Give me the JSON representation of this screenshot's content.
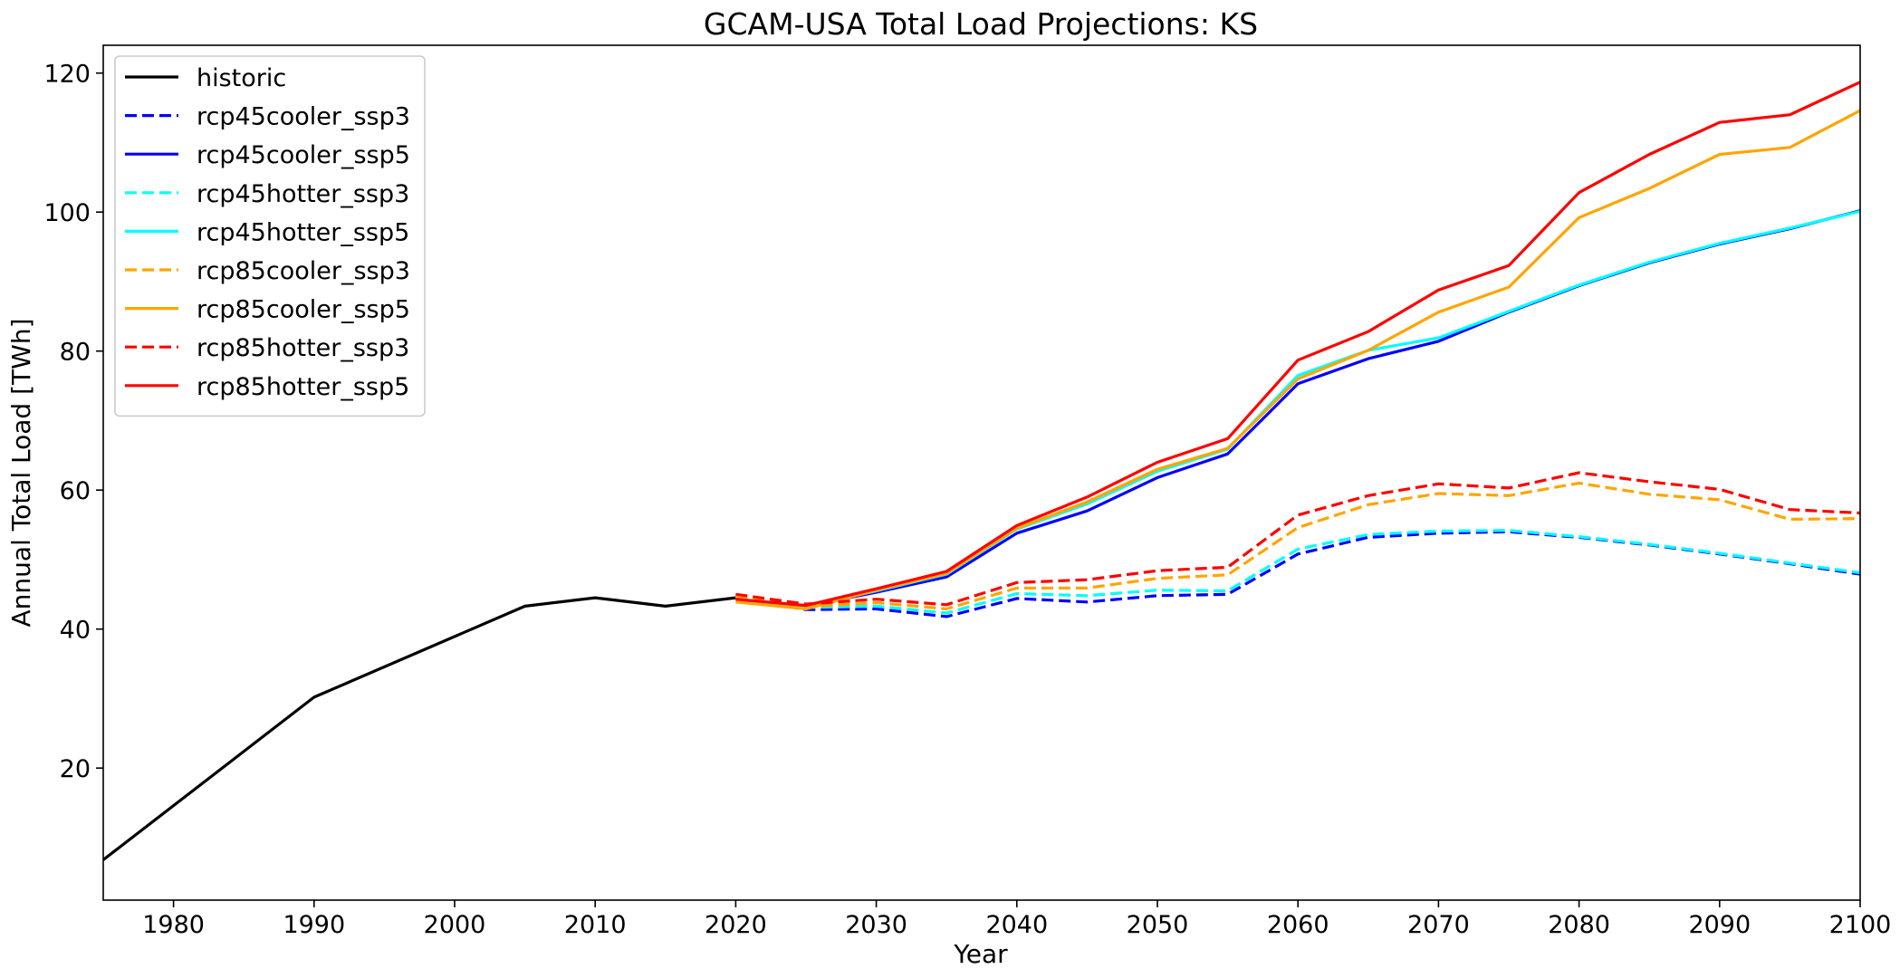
{
  "chart_data": {
    "type": "line",
    "title": "GCAM-USA Total Load Projections: KS",
    "xlabel": "Year",
    "ylabel": "Annual Total Load [TWh]",
    "xlim": [
      1975,
      2100
    ],
    "ylim": [
      1,
      124
    ],
    "xticks": [
      1980,
      1990,
      2000,
      2010,
      2020,
      2030,
      2040,
      2050,
      2060,
      2070,
      2080,
      2090,
      2100
    ],
    "yticks": [
      20,
      40,
      60,
      80,
      100,
      120
    ],
    "grid": false,
    "legend_position": "upper-left",
    "series": [
      {
        "name": "historic",
        "color": "#000000",
        "dash": "solid",
        "x": [
          1975,
          1990,
          2005,
          2010,
          2015,
          2020
        ],
        "y": [
          6.8,
          30.2,
          43.3,
          44.5,
          43.3,
          44.5
        ]
      },
      {
        "name": "rcp45cooler_ssp3",
        "color": "#0000ff",
        "dash": "dashed",
        "x": [
          2020,
          2025,
          2030,
          2035,
          2040,
          2045,
          2050,
          2055,
          2060,
          2065,
          2070,
          2075,
          2080,
          2085,
          2090,
          2095,
          2100
        ],
        "y": [
          44.5,
          42.8,
          42.9,
          41.8,
          44.4,
          43.9,
          44.8,
          45.0,
          50.8,
          53.2,
          53.8,
          54.0,
          53.2,
          52.1,
          50.8,
          49.4,
          47.9
        ]
      },
      {
        "name": "rcp45cooler_ssp5",
        "color": "#0000ff",
        "dash": "solid",
        "x": [
          2020,
          2025,
          2030,
          2035,
          2040,
          2045,
          2050,
          2055,
          2060,
          2065,
          2070,
          2075,
          2080,
          2085,
          2090,
          2095,
          2100
        ],
        "y": [
          44.3,
          43.3,
          45.3,
          47.5,
          53.8,
          57.0,
          61.8,
          65.2,
          75.3,
          78.9,
          81.4,
          85.6,
          89.4,
          92.7,
          95.4,
          97.6,
          100.2
        ]
      },
      {
        "name": "rcp45hotter_ssp3",
        "color": "#00ffff",
        "dash": "dashed",
        "x": [
          2020,
          2025,
          2030,
          2035,
          2040,
          2045,
          2050,
          2055,
          2060,
          2065,
          2070,
          2075,
          2080,
          2085,
          2090,
          2095,
          2100
        ],
        "y": [
          44.6,
          43.1,
          43.3,
          42.3,
          45.1,
          44.8,
          45.6,
          45.5,
          51.5,
          53.6,
          54.1,
          54.2,
          53.3,
          52.2,
          50.9,
          49.5,
          48.1
        ]
      },
      {
        "name": "rcp45hotter_ssp5",
        "color": "#00ffff",
        "dash": "solid",
        "x": [
          2020,
          2025,
          2030,
          2035,
          2040,
          2045,
          2050,
          2055,
          2060,
          2065,
          2070,
          2075,
          2080,
          2085,
          2090,
          2095,
          2100
        ],
        "y": [
          44.3,
          43.3,
          45.5,
          47.9,
          54.4,
          58.0,
          62.7,
          65.9,
          76.5,
          80.1,
          81.9,
          85.7,
          89.5,
          92.8,
          95.5,
          97.7,
          100.1
        ]
      },
      {
        "name": "rcp85cooler_ssp3",
        "color": "#ffa500",
        "dash": "dashed",
        "x": [
          2020,
          2025,
          2030,
          2035,
          2040,
          2045,
          2050,
          2055,
          2060,
          2065,
          2070,
          2075,
          2080,
          2085,
          2090,
          2095,
          2100
        ],
        "y": [
          44.6,
          43.2,
          43.8,
          42.9,
          45.9,
          45.9,
          47.3,
          47.8,
          54.6,
          57.9,
          59.5,
          59.2,
          61.0,
          59.4,
          58.6,
          55.8,
          55.9
        ]
      },
      {
        "name": "rcp85cooler_ssp5",
        "color": "#ffa500",
        "dash": "solid",
        "x": [
          2020,
          2025,
          2030,
          2035,
          2040,
          2045,
          2050,
          2055,
          2060,
          2065,
          2070,
          2075,
          2080,
          2085,
          2090,
          2095,
          2100
        ],
        "y": [
          43.9,
          42.9,
          45.6,
          48.0,
          54.5,
          58.3,
          63.0,
          66.0,
          76.0,
          80.1,
          85.6,
          89.2,
          99.2,
          103.4,
          108.3,
          109.3,
          114.6
        ]
      },
      {
        "name": "rcp85hotter_ssp3",
        "color": "#ff0000",
        "dash": "dashed",
        "x": [
          2020,
          2025,
          2030,
          2035,
          2040,
          2045,
          2050,
          2055,
          2060,
          2065,
          2070,
          2075,
          2080,
          2085,
          2090,
          2095,
          2100
        ],
        "y": [
          45.0,
          43.6,
          44.3,
          43.5,
          46.7,
          47.1,
          48.4,
          48.9,
          56.4,
          59.2,
          60.9,
          60.3,
          62.5,
          61.2,
          60.1,
          57.2,
          56.7
        ]
      },
      {
        "name": "rcp85hotter_ssp5",
        "color": "#ff0000",
        "dash": "solid",
        "x": [
          2020,
          2025,
          2030,
          2035,
          2040,
          2045,
          2050,
          2055,
          2060,
          2065,
          2070,
          2075,
          2080,
          2085,
          2090,
          2095,
          2100
        ],
        "y": [
          44.3,
          43.4,
          45.8,
          48.3,
          54.9,
          59.0,
          64.0,
          67.4,
          78.7,
          82.8,
          88.8,
          92.3,
          102.8,
          108.3,
          112.9,
          114.0,
          118.7
        ]
      }
    ]
  }
}
